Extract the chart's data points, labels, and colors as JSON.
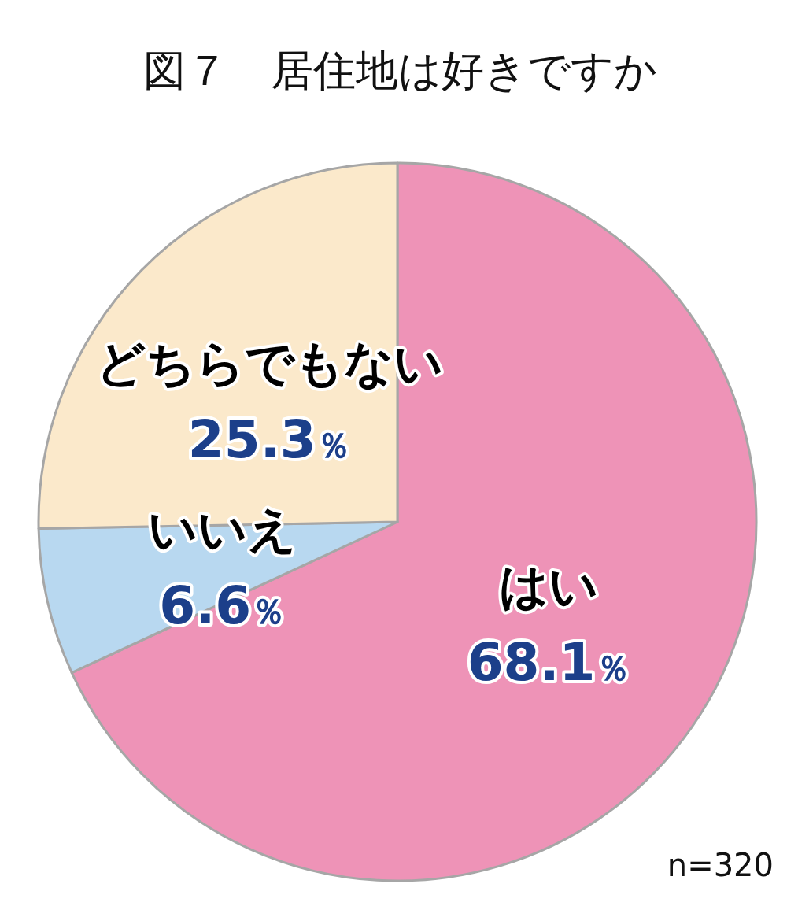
{
  "chart_data": {
    "type": "pie",
    "title": "図７　居住地は好きですか",
    "categories": [
      "はい",
      "いいえ",
      "どちらでもない"
    ],
    "values": [
      68.1,
      6.6,
      25.3
    ],
    "colors": [
      "#ee93b7",
      "#b8d8f0",
      "#fbe9cb"
    ],
    "value_labels": [
      "68.1％",
      "6.6％",
      "25.3％"
    ],
    "annotations": [
      "n=320"
    ],
    "legend": false
  }
}
